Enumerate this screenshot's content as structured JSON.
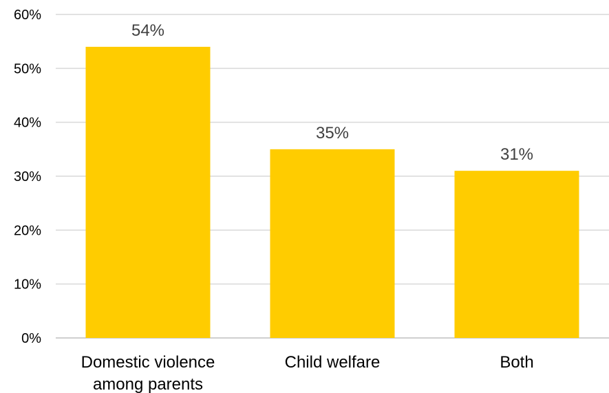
{
  "chart_data": {
    "type": "bar",
    "title": "",
    "xlabel": "",
    "ylabel": "",
    "categories": [
      [
        "Domestic violence",
        "among parents"
      ],
      [
        "Child welfare"
      ],
      [
        "Both"
      ]
    ],
    "values": [
      54,
      35,
      31
    ],
    "data_labels": [
      "54%",
      "35%",
      "31%"
    ],
    "ylim": [
      0,
      60
    ],
    "yticks": [
      0,
      10,
      20,
      30,
      40,
      50,
      60
    ],
    "ytick_labels": [
      "0%",
      "10%",
      "20%",
      "30%",
      "40%",
      "50%",
      "60%"
    ],
    "grid": true,
    "legend": "none",
    "bar_color": "#FFCC00",
    "grid_color": "#D9D9D9",
    "data_label_color": "#404040"
  }
}
